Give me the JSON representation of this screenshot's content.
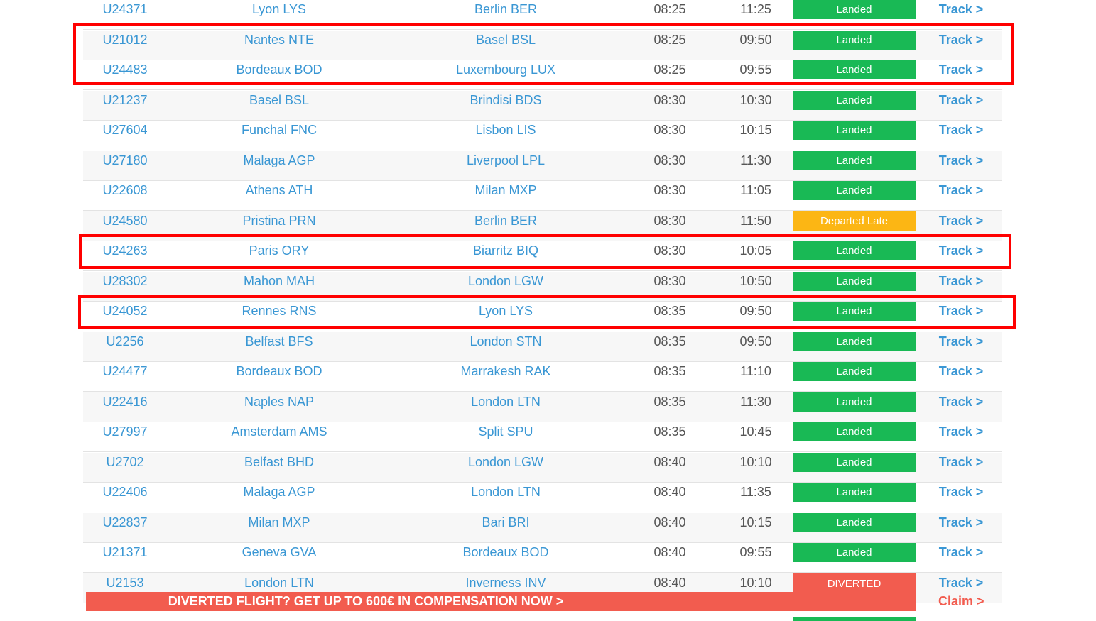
{
  "flights": [
    {
      "flight": "U24371",
      "from": "Lyon LYS",
      "to": "Berlin BER",
      "dep": "08:25",
      "arr": "11:25",
      "status": "Landed",
      "status_kind": "landed",
      "action": "Track >"
    },
    {
      "flight": "U21012",
      "from": "Nantes NTE",
      "to": "Basel BSL",
      "dep": "08:25",
      "arr": "09:50",
      "status": "Landed",
      "status_kind": "landed",
      "action": "Track >"
    },
    {
      "flight": "U24483",
      "from": "Bordeaux BOD",
      "to": "Luxembourg LUX",
      "dep": "08:25",
      "arr": "09:55",
      "status": "Landed",
      "status_kind": "landed",
      "action": "Track >"
    },
    {
      "flight": "U21237",
      "from": "Basel BSL",
      "to": "Brindisi BDS",
      "dep": "08:30",
      "arr": "10:30",
      "status": "Landed",
      "status_kind": "landed",
      "action": "Track >"
    },
    {
      "flight": "U27604",
      "from": "Funchal FNC",
      "to": "Lisbon LIS",
      "dep": "08:30",
      "arr": "10:15",
      "status": "Landed",
      "status_kind": "landed",
      "action": "Track >"
    },
    {
      "flight": "U27180",
      "from": "Malaga AGP",
      "to": "Liverpool LPL",
      "dep": "08:30",
      "arr": "11:30",
      "status": "Landed",
      "status_kind": "landed",
      "action": "Track >"
    },
    {
      "flight": "U22608",
      "from": "Athens ATH",
      "to": "Milan MXP",
      "dep": "08:30",
      "arr": "11:05",
      "status": "Landed",
      "status_kind": "landed",
      "action": "Track >"
    },
    {
      "flight": "U24580",
      "from": "Pristina PRN",
      "to": "Berlin BER",
      "dep": "08:30",
      "arr": "11:50",
      "status": "Departed Late",
      "status_kind": "late",
      "action": "Track >"
    },
    {
      "flight": "U24263",
      "from": "Paris ORY",
      "to": "Biarritz BIQ",
      "dep": "08:30",
      "arr": "10:05",
      "status": "Landed",
      "status_kind": "landed",
      "action": "Track >"
    },
    {
      "flight": "U28302",
      "from": "Mahon MAH",
      "to": "London LGW",
      "dep": "08:30",
      "arr": "10:50",
      "status": "Landed",
      "status_kind": "landed",
      "action": "Track >"
    },
    {
      "flight": "U24052",
      "from": "Rennes RNS",
      "to": "Lyon LYS",
      "dep": "08:35",
      "arr": "09:50",
      "status": "Landed",
      "status_kind": "landed",
      "action": "Track >"
    },
    {
      "flight": "U2256",
      "from": "Belfast BFS",
      "to": "London STN",
      "dep": "08:35",
      "arr": "09:50",
      "status": "Landed",
      "status_kind": "landed",
      "action": "Track >"
    },
    {
      "flight": "U24477",
      "from": "Bordeaux BOD",
      "to": "Marrakesh RAK",
      "dep": "08:35",
      "arr": "11:10",
      "status": "Landed",
      "status_kind": "landed",
      "action": "Track >"
    },
    {
      "flight": "U22416",
      "from": "Naples NAP",
      "to": "London LTN",
      "dep": "08:35",
      "arr": "11:30",
      "status": "Landed",
      "status_kind": "landed",
      "action": "Track >"
    },
    {
      "flight": "U27997",
      "from": "Amsterdam AMS",
      "to": "Split SPU",
      "dep": "08:35",
      "arr": "10:45",
      "status": "Landed",
      "status_kind": "landed",
      "action": "Track >"
    },
    {
      "flight": "U2702",
      "from": "Belfast BHD",
      "to": "London LGW",
      "dep": "08:40",
      "arr": "10:10",
      "status": "Landed",
      "status_kind": "landed",
      "action": "Track >"
    },
    {
      "flight": "U22406",
      "from": "Malaga AGP",
      "to": "London LTN",
      "dep": "08:40",
      "arr": "11:35",
      "status": "Landed",
      "status_kind": "landed",
      "action": "Track >"
    },
    {
      "flight": "U22837",
      "from": "Milan MXP",
      "to": "Bari BRI",
      "dep": "08:40",
      "arr": "10:15",
      "status": "Landed",
      "status_kind": "landed",
      "action": "Track >"
    },
    {
      "flight": "U21371",
      "from": "Geneva GVA",
      "to": "Bordeaux BOD",
      "dep": "08:40",
      "arr": "09:55",
      "status": "Landed",
      "status_kind": "landed",
      "action": "Track >"
    },
    {
      "flight": "U2153",
      "from": "London LTN",
      "to": "Inverness INV",
      "dep": "08:40",
      "arr": "10:10",
      "status": "DIVERTED",
      "status_kind": "diverted",
      "action": "Track >"
    }
  ],
  "status_colors": {
    "landed": "#19b955",
    "late": "#fcb614",
    "diverted": "#f25c4f"
  },
  "promo": {
    "text": "DIVERTED FLIGHT? GET UP TO 600€ IN COMPENSATION NOW >",
    "claim": "Claim >"
  }
}
